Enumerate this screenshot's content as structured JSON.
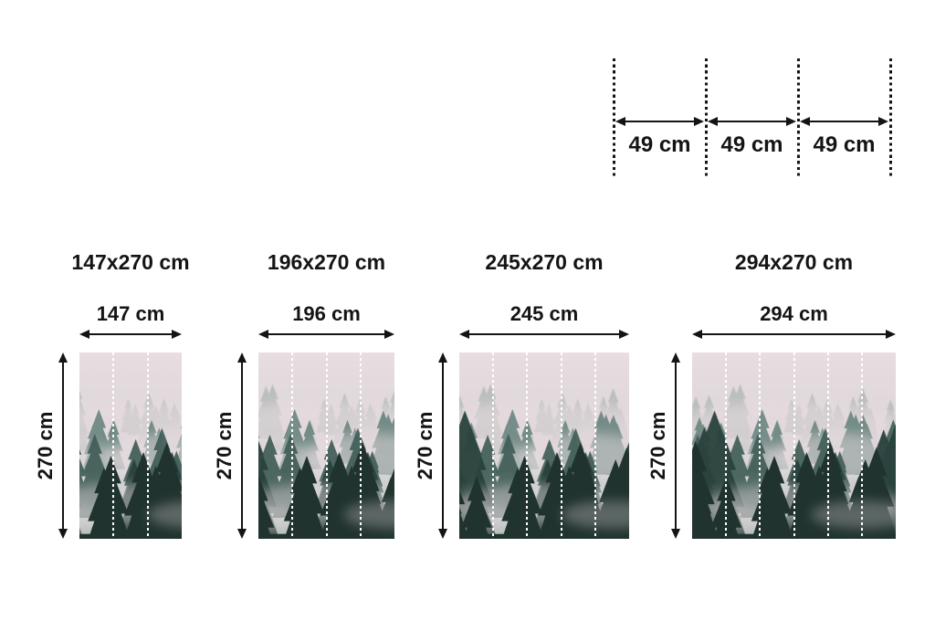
{
  "page": {
    "background": "#ffffff"
  },
  "panel_diagram": {
    "segment_labels": [
      "49 cm",
      "49 cm",
      "49 cm"
    ]
  },
  "sizes": [
    {
      "title": "147x270 cm",
      "width_label": "147 cm",
      "height_label": "270 cm",
      "panels": 3
    },
    {
      "title": "196x270 cm",
      "width_label": "196 cm",
      "height_label": "270 cm",
      "panels": 4
    },
    {
      "title": "245x270 cm",
      "width_label": "245 cm",
      "height_label": "270 cm",
      "panels": 5
    },
    {
      "title": "294x270 cm",
      "width_label": "294 cm",
      "height_label": "270 cm",
      "panels": 6
    }
  ],
  "artwork": {
    "name": "misty-forest-photo"
  },
  "colors": {
    "text": "#141414",
    "arrow": "#141414",
    "cut_line_dark": "#141414",
    "cut_line_light": "#ffffff",
    "forest_dark": "#20332f",
    "fog_pink": "#e7dce0"
  }
}
